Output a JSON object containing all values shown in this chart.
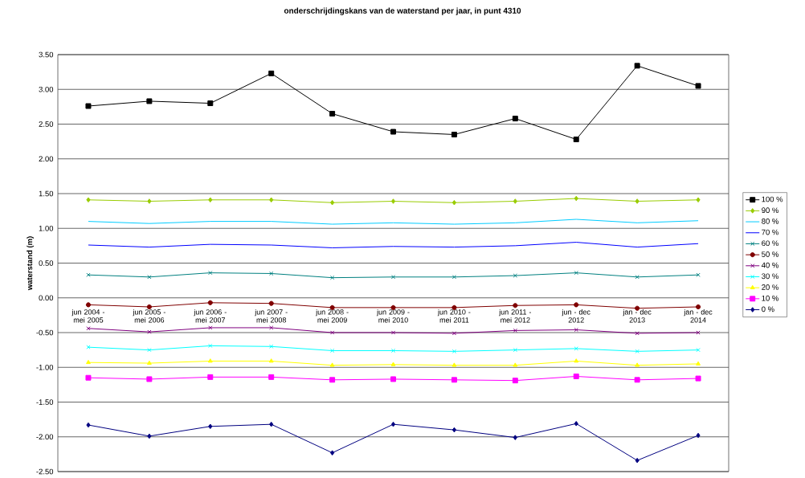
{
  "chart_data": {
    "type": "line",
    "title": "onderschrijdingskans van de waterstand per jaar, in punt 4310",
    "ylabel": "waterstand (m)",
    "categories": [
      "jun 2004 - mei 2005",
      "jun 2005 - mei 2006",
      "jun 2006 - mei 2007",
      "jun 2007 - mei 2008",
      "jun 2008 - mei 2009",
      "jun 2009 - mei 2010",
      "jun 2010 - mei 2011",
      "jun 2011 - mei 2012",
      "jun - dec 2012",
      "jan - dec 2013",
      "jan - dec 2014"
    ],
    "ylim": [
      -2.5,
      3.5
    ],
    "yticks": [
      {
        "value": -2.5,
        "label": "-2.50"
      },
      {
        "value": -2.0,
        "label": "-2.00"
      },
      {
        "value": -1.5,
        "label": "-1.50"
      },
      {
        "value": -1.0,
        "label": "-1.00"
      },
      {
        "value": -0.5,
        "label": "-0.50"
      },
      {
        "value": 0,
        "label": "0.00"
      },
      {
        "value": 0.5,
        "label": "0.50"
      },
      {
        "value": 1.0,
        "label": "1.00"
      },
      {
        "value": 1.5,
        "label": "1.50"
      },
      {
        "value": 2.0,
        "label": "2.00"
      },
      {
        "value": 2.5,
        "label": "2.50"
      },
      {
        "value": 3.0,
        "label": "3.00"
      },
      {
        "value": 3.5,
        "label": "3.50"
      }
    ],
    "grid": true,
    "legend": "right",
    "series": [
      {
        "name": "100 %",
        "color": "#000000",
        "marker": "square",
        "values": [
          2.76,
          2.83,
          2.8,
          3.23,
          2.65,
          2.39,
          2.35,
          2.58,
          2.28,
          3.34,
          3.05
        ]
      },
      {
        "name": "90 %",
        "color": "#99cc00",
        "marker": "diamond",
        "values": [
          1.41,
          1.39,
          1.41,
          1.41,
          1.37,
          1.39,
          1.37,
          1.39,
          1.43,
          1.39,
          1.41
        ]
      },
      {
        "name": "80 %",
        "color": "#00ccff",
        "marker": "none",
        "values": [
          1.1,
          1.07,
          1.1,
          1.1,
          1.06,
          1.08,
          1.06,
          1.08,
          1.13,
          1.08,
          1.11
        ]
      },
      {
        "name": "70 %",
        "color": "#0000ff",
        "marker": "none",
        "values": [
          0.76,
          0.73,
          0.77,
          0.76,
          0.72,
          0.74,
          0.73,
          0.75,
          0.8,
          0.73,
          0.78
        ]
      },
      {
        "name": "60 %",
        "color": "#008080",
        "marker": "cross",
        "values": [
          0.33,
          0.3,
          0.36,
          0.35,
          0.29,
          0.3,
          0.3,
          0.32,
          0.36,
          0.3,
          0.33
        ]
      },
      {
        "name": "50 %",
        "color": "#800000",
        "marker": "circle",
        "values": [
          -0.1,
          -0.13,
          -0.07,
          -0.08,
          -0.14,
          -0.14,
          -0.14,
          -0.11,
          -0.1,
          -0.15,
          -0.13
        ]
      },
      {
        "name": "40 %",
        "color": "#800080",
        "marker": "cross",
        "values": [
          -0.44,
          -0.49,
          -0.43,
          -0.43,
          -0.5,
          -0.5,
          -0.51,
          -0.47,
          -0.46,
          -0.51,
          -0.5
        ]
      },
      {
        "name": "30 %",
        "color": "#00ffff",
        "marker": "cross",
        "values": [
          -0.71,
          -0.75,
          -0.69,
          -0.7,
          -0.76,
          -0.76,
          -0.77,
          -0.75,
          -0.73,
          -0.77,
          -0.75
        ]
      },
      {
        "name": "20 %",
        "color": "#ffff00",
        "marker": "triangle",
        "values": [
          -0.93,
          -0.94,
          -0.91,
          -0.91,
          -0.97,
          -0.96,
          -0.97,
          -0.97,
          -0.91,
          -0.97,
          -0.95
        ]
      },
      {
        "name": "10 %",
        "color": "#ff00ff",
        "marker": "square",
        "values": [
          -1.15,
          -1.17,
          -1.14,
          -1.14,
          -1.18,
          -1.17,
          -1.18,
          -1.19,
          -1.13,
          -1.18,
          -1.16
        ]
      },
      {
        "name": "0 %",
        "color": "#000080",
        "marker": "diamond",
        "values": [
          -1.83,
          -1.99,
          -1.85,
          -1.82,
          -2.23,
          -1.82,
          -1.9,
          -2.01,
          -1.81,
          -2.34,
          -1.98
        ]
      }
    ]
  }
}
